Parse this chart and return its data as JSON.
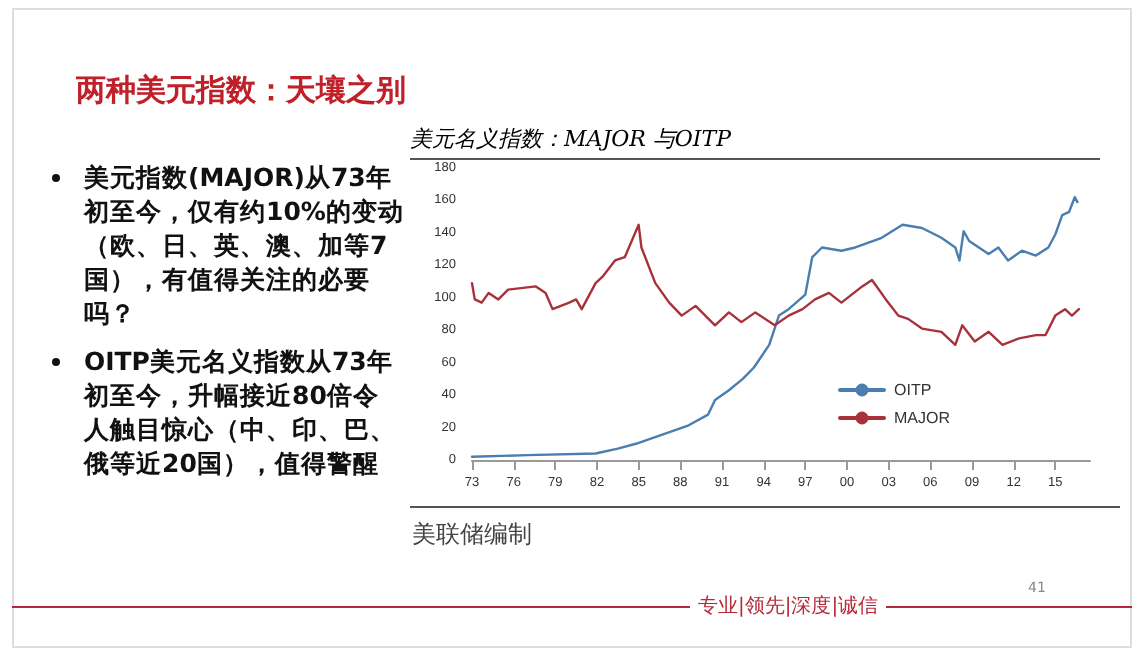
{
  "chart_data": {
    "type": "line",
    "title": "两种美元指数：天壤之别",
    "subtitle": "美元名义指数：MAJOR 与OITP",
    "annotations": [
      "美元指数(MAJOR)从73年初至今，仅有约10%的变动（欧、日、英、澳、加等7国），有值得关注的必要吗？",
      "OITP美元名义指数从73年初至今，升幅接近80倍令人触目惊心（中、印、巴、俄等近20国），值得警醒",
      "美联储编制",
      "专业|领先|深度|诚信",
      "41"
    ],
    "series": [
      {
        "name": "OITP",
        "color": "#4a7eb0",
        "x": [
          1973.0,
          1977,
          1981.9,
          1983.5,
          1984.8,
          1986.5,
          1988.5,
          1990,
          1990.5,
          1991.5,
          1992.5,
          1993.3,
          1994.4,
          1995.1,
          1995.8,
          1997,
          1997.5,
          1998.2,
          1999.6,
          2000.6,
          2002.5,
          2004,
          2005.4,
          2006.8,
          2007.8,
          2008.1,
          2008.4,
          2008.8,
          2010.2,
          2010.9,
          2011.6,
          2012.6,
          2013.6,
          2014.5,
          2015,
          2015.5,
          2016,
          2016.4,
          2016.6
        ],
        "values": [
          2,
          3,
          4,
          7,
          10,
          15,
          21,
          28,
          37,
          43,
          50,
          57,
          71,
          89,
          93,
          102,
          125,
          131,
          129,
          131,
          137,
          145,
          143,
          137,
          131,
          123,
          141,
          135,
          127,
          131,
          123,
          129,
          126,
          131,
          139,
          151,
          153,
          162,
          159
        ]
      },
      {
        "name": "MAJOR",
        "color": "#a8323a",
        "x": [
          1973.0,
          1973.2,
          1973.7,
          1974.2,
          1974.9,
          1975.6,
          1977.6,
          1978.3,
          1978.8,
          1980.0,
          1980.5,
          1980.9,
          1981.9,
          1982.4,
          1983.3,
          1984.0,
          1985.0,
          1985.2,
          1986.2,
          1987.2,
          1988.1,
          1989.1,
          1990.5,
          1991.5,
          1992.4,
          1993.4,
          1994.8,
          1995.8,
          1996.8,
          1997.7,
          1998.7,
          1999.6,
          2001.1,
          2001.8,
          2002.8,
          2003.7,
          2004.4,
          2005.4,
          2006.8,
          2007.8,
          2008.3,
          2009.2,
          2010.2,
          2011.2,
          2012.4,
          2013.6,
          2014.3,
          2015.0,
          2015.7,
          2016.2,
          2016.7
        ],
        "values": [
          109,
          99,
          97,
          103,
          99,
          105,
          107,
          103,
          93,
          97,
          99,
          93,
          109,
          113,
          123,
          125,
          145,
          131,
          109,
          97,
          89,
          95,
          83,
          91,
          85,
          91,
          83,
          89,
          93,
          99,
          103,
          97,
          107,
          111,
          99,
          89,
          87,
          81,
          79,
          71,
          83,
          73,
          79,
          71,
          75,
          77,
          77,
          89,
          93,
          89,
          93
        ]
      }
    ],
    "xlim": [
      1973,
      2017.5
    ],
    "xticks": [
      {
        "value": 1973,
        "label": "73"
      },
      {
        "value": 1976,
        "label": "76"
      },
      {
        "value": 1979,
        "label": "79"
      },
      {
        "value": 1982,
        "label": "82"
      },
      {
        "value": 1985,
        "label": "85"
      },
      {
        "value": 1988,
        "label": "88"
      },
      {
        "value": 1991,
        "label": "91"
      },
      {
        "value": 1994,
        "label": "94"
      },
      {
        "value": 1997,
        "label": "97"
      },
      {
        "value": 2000,
        "label": "00"
      },
      {
        "value": 2003,
        "label": "03"
      },
      {
        "value": 2006,
        "label": "06"
      },
      {
        "value": 2009,
        "label": "09"
      },
      {
        "value": 2012,
        "label": "12"
      },
      {
        "value": 2015,
        "label": "15"
      }
    ],
    "ylim": [
      0,
      180
    ],
    "yticks": [
      0,
      20,
      40,
      60,
      80,
      100,
      120,
      140,
      160,
      180
    ],
    "grid": false,
    "legend": "right",
    "marker": "none",
    "line_style": "solid"
  }
}
